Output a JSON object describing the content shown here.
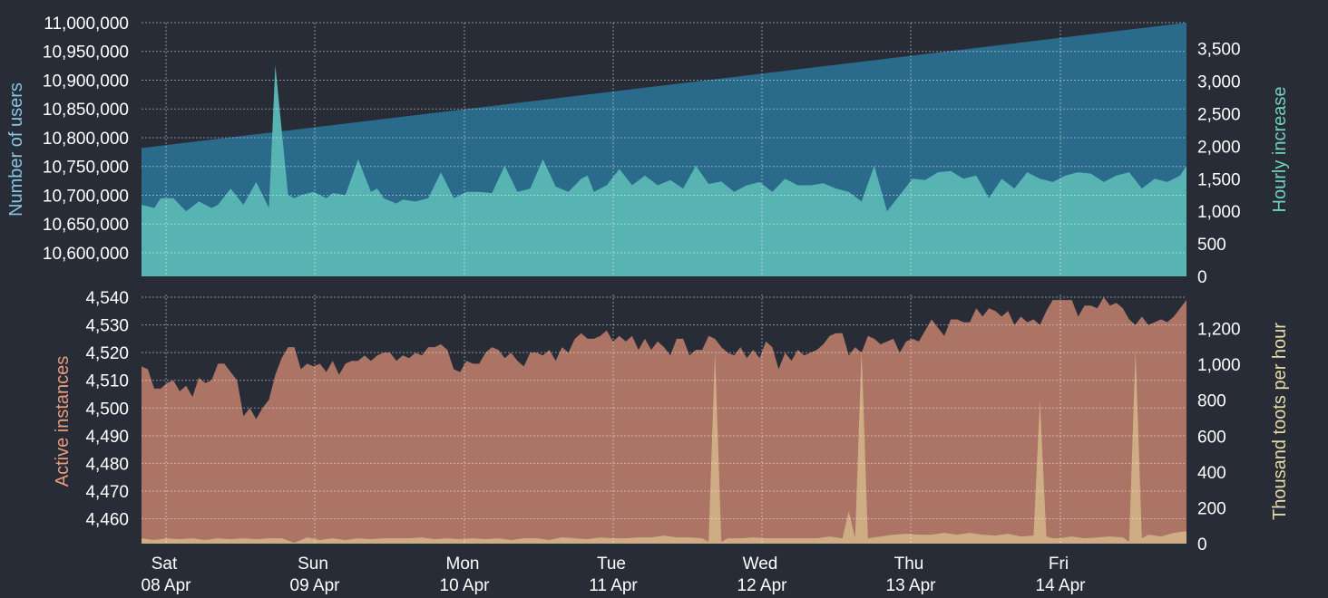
{
  "chart_data": [
    {
      "type": "area",
      "ylabel_left": "Number of users",
      "ylabel_right": "Hourly increase",
      "left_ticks": [
        "10,600,000",
        "10,650,000",
        "10,700,000",
        "10,750,000",
        "10,800,000",
        "10,850,000",
        "10,900,000",
        "10,950,000",
        "11,000,000"
      ],
      "left_tick_values": [
        10600000,
        10650000,
        10700000,
        10750000,
        10800000,
        10850000,
        10900000,
        10950000,
        11000000
      ],
      "right_ticks": [
        "0",
        "500",
        "1,000",
        "1,500",
        "2,000",
        "2,500",
        "3,000",
        "3,500"
      ],
      "right_tick_values": [
        0,
        500,
        1000,
        1500,
        2000,
        2500,
        3000,
        3500
      ],
      "ylim_left": [
        10559000,
        11000000
      ],
      "ylim_right": [
        0,
        3900
      ],
      "colors": {
        "users": "#2a6b8c",
        "increase": "#58b3b3",
        "increase_spike": "#4aa5a0",
        "left_label": "#87c6e3",
        "right_label": "#6fd3c0"
      },
      "series": [
        {
          "name": "Number of users",
          "x": [
            0,
            164
          ],
          "values": [
            10782000,
            11000000
          ]
        },
        {
          "name": "Hourly increase",
          "x": [
            0,
            2,
            3,
            5,
            7,
            9,
            11,
            12,
            14,
            16,
            18,
            19,
            20,
            21,
            23,
            24,
            25,
            27,
            29,
            30,
            32,
            34,
            36,
            37,
            38,
            40,
            41,
            43,
            45,
            47,
            49,
            51,
            53,
            55,
            57,
            59,
            61,
            63,
            65,
            67,
            69,
            70,
            71,
            73,
            75,
            77,
            79,
            81,
            83,
            85,
            87,
            89,
            91,
            93,
            95,
            97,
            99,
            101,
            103,
            105,
            107,
            109,
            111,
            113,
            115,
            117,
            119,
            121,
            123,
            125,
            127,
            129,
            131,
            133,
            135,
            137,
            139,
            141,
            143,
            145,
            147,
            149,
            151,
            153,
            155,
            157,
            159,
            161,
            163,
            164
          ],
          "values": [
            1100,
            1050,
            1200,
            1200,
            1000,
            1150,
            1050,
            1100,
            1350,
            1100,
            1450,
            1250,
            1050,
            3250,
            1250,
            1200,
            1250,
            1300,
            1200,
            1280,
            1250,
            1800,
            1300,
            1350,
            1200,
            1120,
            1180,
            1150,
            1200,
            1600,
            1200,
            1300,
            1300,
            1280,
            1700,
            1300,
            1350,
            1800,
            1380,
            1300,
            1500,
            1550,
            1300,
            1400,
            1650,
            1400,
            1550,
            1400,
            1480,
            1350,
            1700,
            1420,
            1460,
            1300,
            1400,
            1450,
            1300,
            1500,
            1400,
            1400,
            1430,
            1350,
            1300,
            1150,
            1700,
            1000,
            1250,
            1500,
            1480,
            1600,
            1620,
            1500,
            1550,
            1200,
            1500,
            1350,
            1600,
            1500,
            1450,
            1550,
            1600,
            1580,
            1450,
            1550,
            1600,
            1350,
            1500,
            1450,
            1550,
            1700
          ]
        }
      ]
    },
    {
      "type": "area",
      "ylabel_left": "Active instances",
      "ylabel_right": "Thousand toots per hour",
      "left_ticks": [
        "4,460",
        "4,470",
        "4,480",
        "4,490",
        "4,500",
        "4,510",
        "4,520",
        "4,530",
        "4,540"
      ],
      "left_tick_values": [
        4460,
        4470,
        4480,
        4490,
        4500,
        4510,
        4520,
        4530,
        4540
      ],
      "right_ticks": [
        "0",
        "200",
        "400",
        "600",
        "800",
        "1,000",
        "1,200"
      ],
      "right_tick_values": [
        0,
        200,
        400,
        600,
        800,
        1000,
        1200
      ],
      "ylim_left": [
        4451,
        4541
      ],
      "ylim_right": [
        0,
        1390
      ],
      "colors": {
        "instances": "#ab7465",
        "toots": "#cfad84",
        "left_label": "#e99c7d",
        "right_label": "#e6dba5"
      },
      "series": [
        {
          "name": "Active instances",
          "x": [
            0,
            1,
            2,
            3,
            4,
            5,
            6,
            7,
            8,
            9,
            10,
            11,
            12,
            13,
            14,
            15,
            16,
            17,
            18,
            19,
            20,
            21,
            22,
            23,
            24,
            25,
            26,
            27,
            28,
            29,
            30,
            31,
            32,
            33,
            34,
            35,
            36,
            37,
            38,
            39,
            40,
            41,
            42,
            43,
            44,
            45,
            46,
            47,
            48,
            49,
            50,
            51,
            52,
            53,
            54,
            55,
            56,
            57,
            58,
            59,
            60,
            61,
            62,
            63,
            64,
            65,
            66,
            67,
            68,
            69,
            70,
            71,
            72,
            73,
            74,
            75,
            76,
            77,
            78,
            79,
            80,
            81,
            82,
            83,
            84,
            85,
            86,
            87,
            88,
            89,
            90,
            91,
            92,
            93,
            94,
            95,
            96,
            97,
            98,
            99,
            100,
            101,
            102,
            103,
            104,
            105,
            106,
            107,
            108,
            109,
            110,
            111,
            112,
            113,
            114,
            115,
            116,
            117,
            118,
            119,
            120,
            121,
            122,
            123,
            124,
            125,
            126,
            127,
            128,
            129,
            130,
            131,
            132,
            133,
            134,
            135,
            136,
            137,
            138,
            139,
            140,
            141,
            142,
            143,
            144,
            145,
            146,
            147,
            148,
            149,
            150,
            151,
            152,
            153,
            154,
            155,
            156,
            157,
            158,
            159,
            160,
            161,
            162,
            163,
            164
          ],
          "values": [
            4515,
            4514,
            4507,
            4507,
            4509,
            4510,
            4506,
            4508,
            4504,
            4511,
            4509,
            4510,
            4516,
            4516,
            4513,
            4510,
            4497,
            4500,
            4496,
            4500,
            4503,
            4512,
            4518,
            4522,
            4522,
            4514,
            4516,
            4515,
            4516,
            4513,
            4517,
            4512,
            4516,
            4517,
            4517,
            4519,
            4517,
            4519,
            4520,
            4520,
            4517,
            4519,
            4518,
            4520,
            4519,
            4522,
            4522,
            4523,
            4521,
            4514,
            4513,
            4517,
            4516,
            4516,
            4520,
            4522,
            4521,
            4518,
            4520,
            4517,
            4515,
            4520,
            4520,
            4519,
            4521,
            4517,
            4522,
            4520,
            4525,
            4527,
            4525,
            4525,
            4526,
            4528,
            4524,
            4526,
            4524,
            4526,
            4521,
            4525,
            4521,
            4524,
            4522,
            4519,
            4525,
            4525,
            4519,
            4521,
            4521,
            4526,
            4525,
            4522,
            4520,
            4519,
            4522,
            4518,
            4521,
            4518,
            4524,
            4522,
            4514,
            4520,
            4517,
            4521,
            4519,
            4520,
            4521,
            4523,
            4526,
            4527,
            4527,
            4519,
            4522,
            4520,
            4526,
            4525,
            4523,
            4524,
            4525,
            4520,
            4524,
            4525,
            4524,
            4528,
            4532,
            4529,
            4526,
            4532,
            4532,
            4531,
            4531,
            4536,
            4533,
            4536,
            4535,
            4533,
            4535,
            4530,
            4533,
            4531,
            4532,
            4530,
            4535,
            4539,
            4539,
            4539,
            4539,
            4533,
            4537,
            4537,
            4536,
            4540,
            4537,
            4538,
            4536,
            4532,
            4530,
            4533,
            4530,
            4531,
            4532,
            4531,
            4533,
            4536,
            4539
          ]
        },
        {
          "name": "Thousand toots per hour",
          "x": [
            0,
            2,
            4,
            6,
            8,
            10,
            12,
            14,
            16,
            18,
            20,
            22,
            24,
            26,
            28,
            30,
            32,
            34,
            36,
            38,
            40,
            42,
            44,
            46,
            48,
            50,
            52,
            54,
            56,
            58,
            60,
            62,
            64,
            66,
            68,
            70,
            72,
            74,
            76,
            78,
            80,
            82,
            84,
            86,
            88,
            89,
            90,
            91,
            92,
            94,
            96,
            98,
            100,
            102,
            104,
            106,
            108,
            110,
            111,
            112,
            113,
            114,
            116,
            118,
            120,
            122,
            124,
            126,
            128,
            130,
            132,
            134,
            136,
            138,
            140,
            141,
            142,
            143,
            144,
            146,
            148,
            150,
            152,
            154,
            155,
            156,
            157,
            158,
            160,
            162,
            164
          ],
          "values": [
            30,
            20,
            30,
            25,
            30,
            20,
            30,
            25,
            30,
            25,
            30,
            30,
            5,
            35,
            20,
            30,
            20,
            30,
            25,
            30,
            30,
            30,
            35,
            25,
            30,
            25,
            30,
            25,
            30,
            20,
            30,
            30,
            20,
            35,
            30,
            25,
            35,
            30,
            30,
            35,
            35,
            45,
            35,
            35,
            30,
            10,
            1070,
            10,
            30,
            30,
            35,
            30,
            30,
            30,
            30,
            30,
            40,
            30,
            180,
            30,
            1080,
            30,
            40,
            50,
            55,
            50,
            50,
            60,
            50,
            60,
            50,
            45,
            55,
            40,
            45,
            800,
            40,
            30,
            30,
            40,
            30,
            35,
            40,
            35,
            10,
            1080,
            30,
            50,
            40,
            60,
            70
          ]
        }
      ]
    }
  ],
  "x_axis": {
    "type": "date",
    "ticks": [
      {
        "day": "Sat",
        "date": "08 Apr"
      },
      {
        "day": "Sun",
        "date": "09 Apr"
      },
      {
        "day": "Mon",
        "date": "10 Apr"
      },
      {
        "day": "Tue",
        "date": "11 Apr"
      },
      {
        "day": "Wed",
        "date": "12 Apr"
      },
      {
        "day": "Thu",
        "date": "13 Apr"
      },
      {
        "day": "Fri",
        "date": "14 Apr"
      }
    ]
  }
}
